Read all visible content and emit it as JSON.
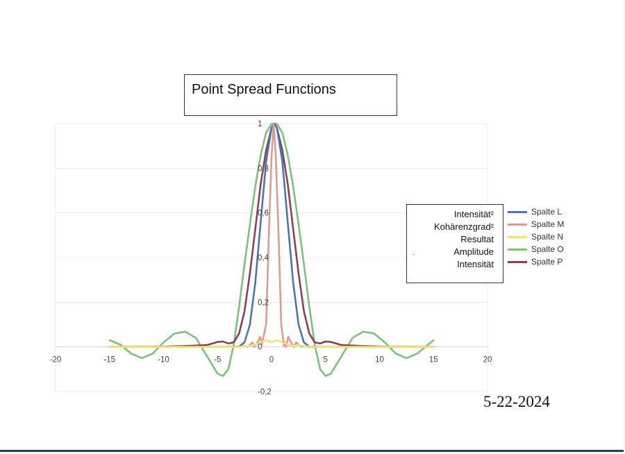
{
  "chart_data": {
    "type": "line",
    "title": "Point Spread Functions",
    "xlim": [
      -20,
      20
    ],
    "ylim": [
      -0.2,
      1
    ],
    "x_ticks": [
      "-20",
      "-15",
      "-10",
      "-5",
      "0",
      "5",
      "10",
      "15",
      "20"
    ],
    "y_ticks": [
      "-0,2",
      "0",
      "0,2",
      "0,4",
      "0,6",
      "0,8",
      "1"
    ],
    "grid": true,
    "legend_position": "right",
    "series": [
      {
        "name": "Spalte L",
        "color": "#4a74b4",
        "points": [
          [
            -15,
            0
          ],
          [
            -10,
            0
          ],
          [
            -5,
            0
          ],
          [
            -3,
            0.001
          ],
          [
            -2.5,
            0.02
          ],
          [
            -2,
            0.1
          ],
          [
            -1.5,
            0.29
          ],
          [
            -1,
            0.56
          ],
          [
            -0.5,
            0.83
          ],
          [
            0,
            0.98
          ],
          [
            0.25,
            1
          ],
          [
            0.5,
            0.98
          ],
          [
            1,
            0.83
          ],
          [
            1.5,
            0.56
          ],
          [
            2,
            0.29
          ],
          [
            2.5,
            0.1
          ],
          [
            3,
            0.02
          ],
          [
            3.5,
            0.001
          ],
          [
            5,
            0
          ],
          [
            10,
            0
          ],
          [
            15,
            0
          ]
        ]
      },
      {
        "name": "Spalte M",
        "color": "#de9a93",
        "points": [
          [
            -15,
            0
          ],
          [
            -5,
            0
          ],
          [
            -3,
            0
          ],
          [
            -2.5,
            0.004
          ],
          [
            -2.25,
            0
          ],
          [
            -2,
            0.008
          ],
          [
            -1.75,
            0.02
          ],
          [
            -1.6,
            0
          ],
          [
            -1.3,
            0.02
          ],
          [
            -1.05,
            0.045
          ],
          [
            -0.9,
            0.01
          ],
          [
            -0.5,
            0.1
          ],
          [
            -0.25,
            0.5
          ],
          [
            0,
            0.85
          ],
          [
            0.2,
            1
          ],
          [
            0.4,
            0.85
          ],
          [
            0.65,
            0.5
          ],
          [
            0.9,
            0.1
          ],
          [
            1.15,
            0.005
          ],
          [
            1.25,
            0.02
          ],
          [
            1.35,
            0
          ],
          [
            1.55,
            0.045
          ],
          [
            1.8,
            0.02
          ],
          [
            2.05,
            0
          ],
          [
            2.3,
            0.02
          ],
          [
            2.55,
            0.008
          ],
          [
            2.8,
            0
          ],
          [
            3.05,
            0.004
          ],
          [
            3.3,
            0
          ],
          [
            5,
            0
          ],
          [
            15,
            0
          ]
        ]
      },
      {
        "name": "Spalte N",
        "color": "#f2e37a",
        "points": [
          [
            -15,
            0
          ],
          [
            -5,
            0
          ],
          [
            -3,
            0
          ],
          [
            -2,
            0.004
          ],
          [
            -1.5,
            0.01
          ],
          [
            -1,
            0.02
          ],
          [
            -0.5,
            0.03
          ],
          [
            0,
            0.02
          ],
          [
            0.5,
            0.03
          ],
          [
            1,
            0.02
          ],
          [
            1.5,
            0.01
          ],
          [
            2,
            0.004
          ],
          [
            2.5,
            0.008
          ],
          [
            3,
            0.003
          ],
          [
            4,
            0
          ],
          [
            15,
            0
          ]
        ]
      },
      {
        "name": "Spalte O",
        "color": "#7cc27a",
        "points": [
          [
            -15,
            0.03
          ],
          [
            -14,
            0.01
          ],
          [
            -13,
            -0.03
          ],
          [
            -12,
            -0.05
          ],
          [
            -11,
            -0.03
          ],
          [
            -10,
            0.02
          ],
          [
            -9,
            0.06
          ],
          [
            -8,
            0.068
          ],
          [
            -7,
            0.04
          ],
          [
            -6,
            -0.04
          ],
          [
            -5,
            -0.12
          ],
          [
            -4.5,
            -0.13
          ],
          [
            -4,
            -0.1
          ],
          [
            -3.5,
            0.01
          ],
          [
            -3,
            0.18
          ],
          [
            -2.5,
            0.37
          ],
          [
            -2,
            0.55
          ],
          [
            -1.5,
            0.72
          ],
          [
            -1,
            0.86
          ],
          [
            -0.5,
            0.96
          ],
          [
            0,
            0.998
          ],
          [
            0.25,
            1
          ],
          [
            0.5,
            0.998
          ],
          [
            1,
            0.96
          ],
          [
            1.5,
            0.86
          ],
          [
            2,
            0.72
          ],
          [
            2.5,
            0.55
          ],
          [
            3,
            0.37
          ],
          [
            3.5,
            0.18
          ],
          [
            4,
            0.01
          ],
          [
            4.5,
            -0.1
          ],
          [
            5,
            -0.13
          ],
          [
            5.5,
            -0.12
          ],
          [
            6.5,
            -0.04
          ],
          [
            7.5,
            0.04
          ],
          [
            8.5,
            0.068
          ],
          [
            9.5,
            0.06
          ],
          [
            10.5,
            0.02
          ],
          [
            11.5,
            -0.03
          ],
          [
            12.5,
            -0.05
          ],
          [
            13.5,
            -0.03
          ],
          [
            14.5,
            0.01
          ],
          [
            15,
            0.03
          ]
        ]
      },
      {
        "name": "Spalte P",
        "color": "#8c3f57",
        "points": [
          [
            -15,
            0
          ],
          [
            -10,
            0.001
          ],
          [
            -8,
            0.004
          ],
          [
            -6,
            0.008
          ],
          [
            -5,
            0.022
          ],
          [
            -4.5,
            0.024
          ],
          [
            -4,
            0.015
          ],
          [
            -3.5,
            0.02
          ],
          [
            -3,
            0.06
          ],
          [
            -2.5,
            0.16
          ],
          [
            -2,
            0.33
          ],
          [
            -1.5,
            0.53
          ],
          [
            -1,
            0.73
          ],
          [
            -0.5,
            0.88
          ],
          [
            0,
            0.98
          ],
          [
            0.25,
            1
          ],
          [
            0.5,
            0.98
          ],
          [
            1,
            0.88
          ],
          [
            1.5,
            0.73
          ],
          [
            2,
            0.53
          ],
          [
            2.5,
            0.33
          ],
          [
            3,
            0.16
          ],
          [
            3.5,
            0.06
          ],
          [
            4,
            0.02
          ],
          [
            4.5,
            0.015
          ],
          [
            5,
            0.024
          ],
          [
            5.5,
            0.022
          ],
          [
            6.5,
            0.008
          ],
          [
            8.5,
            0.004
          ],
          [
            10.5,
            0.001
          ],
          [
            15,
            0
          ]
        ]
      }
    ]
  },
  "note_box": {
    "lines": [
      "Intensität²",
      "Kohärenzgrad²",
      "Resultat",
      "Amplitude",
      "Intensität"
    ]
  },
  "date_stamp": "5-22-2024"
}
